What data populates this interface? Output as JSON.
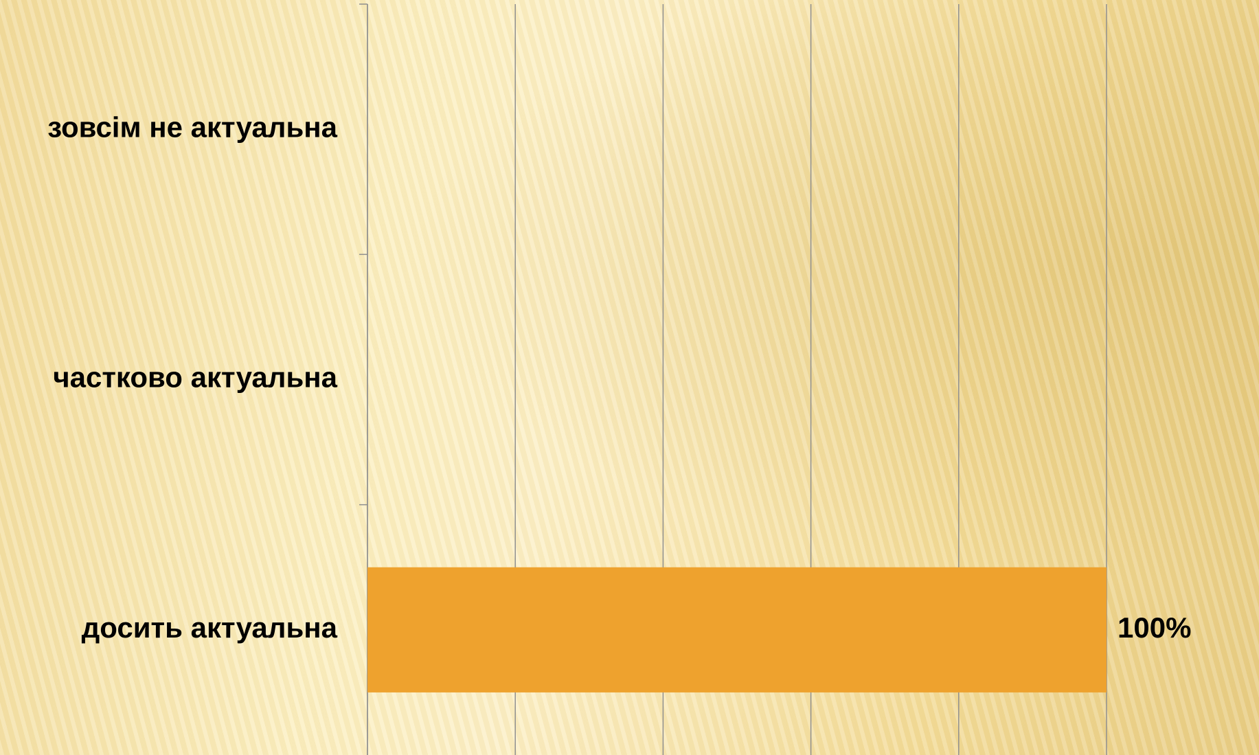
{
  "chart_data": {
    "type": "barh",
    "categories": [
      "зовсім не актуальна",
      "частково актуальна",
      "досить актуальна"
    ],
    "values": [
      0,
      0,
      100
    ],
    "value_labels": [
      null,
      null,
      "100%"
    ],
    "color": "#eea22e",
    "xlim": [
      0,
      100
    ],
    "xticks": [
      0,
      20,
      40,
      60,
      80,
      100
    ],
    "grid": true
  }
}
